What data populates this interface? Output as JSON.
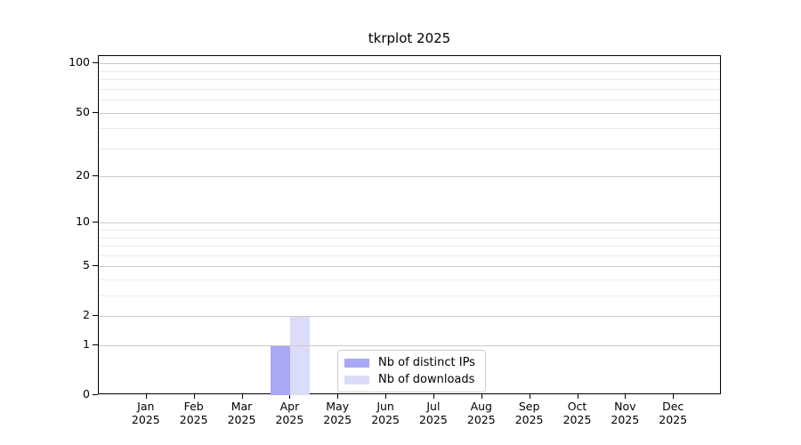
{
  "figure": {
    "background": "#ffffff",
    "axis_color": "#000000",
    "grid_major_color": "#cccccc",
    "grid_minor_color": "#ebebeb"
  },
  "chart_data": {
    "type": "bar",
    "title": "tkrplot 2025",
    "categories": [
      "Jan",
      "Feb",
      "Mar",
      "Apr",
      "May",
      "Jun",
      "Jul",
      "Aug",
      "Sep",
      "Oct",
      "Nov",
      "Dec"
    ],
    "category_sublabel": "2025",
    "series": [
      {
        "name": "Nb of distinct IPs",
        "color": "#a8a8f7",
        "values": [
          0,
          0,
          0,
          1,
          0,
          0,
          0,
          0,
          0,
          0,
          0,
          0
        ]
      },
      {
        "name": "Nb of downloads",
        "color": "#dbdbfa",
        "values": [
          0,
          0,
          0,
          2,
          0,
          0,
          0,
          0,
          0,
          0,
          0,
          0
        ]
      }
    ],
    "xlabel": "",
    "ylabel": "",
    "yscale": "log1p",
    "ylim": [
      0,
      111
    ],
    "yticks_major": [
      0,
      1,
      2,
      5,
      10,
      20,
      50,
      100
    ],
    "yticks_minor": [
      3,
      4,
      6,
      7,
      8,
      9,
      30,
      40,
      60,
      70,
      80,
      90
    ],
    "grid": true,
    "legend_position": "center-bottom"
  }
}
